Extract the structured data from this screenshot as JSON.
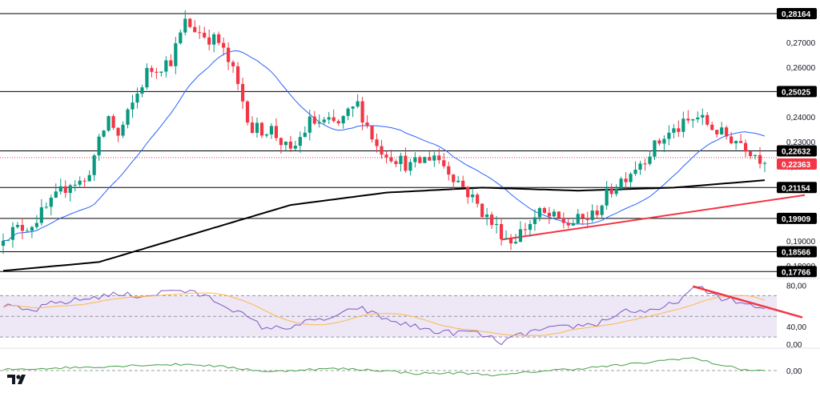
{
  "chart_data": [
    {
      "type": "candlestick",
      "pane": "price",
      "ylim": [
        0.1755,
        0.2865
      ],
      "tick_labels": [
        "0,27000",
        "0,26000",
        "0,24000",
        "0,23000",
        "0,22000",
        "0,19000",
        "0,18000"
      ],
      "tick_values": [
        0.27,
        0.26,
        0.24,
        0.23,
        0.22,
        0.19,
        0.18
      ],
      "level_labels": [
        "0,28164",
        "0,25025",
        "0,22632",
        "0,21154",
        "0,19909",
        "0,18566",
        "0,17766"
      ],
      "level_values": [
        0.28164,
        0.25025,
        0.22632,
        0.21154,
        0.19909,
        0.18566,
        0.17766
      ],
      "last_price_label": "0,22363",
      "last_price": 0.22363,
      "candle_count": 160,
      "close_path": [
        [
          0,
          0.1925
        ],
        [
          6,
          0.197
        ],
        [
          10,
          0.205
        ],
        [
          14,
          0.214
        ],
        [
          17,
          0.2135
        ],
        [
          22,
          0.24
        ],
        [
          24,
          0.232
        ],
        [
          30,
          0.258
        ],
        [
          35,
          0.263
        ],
        [
          38,
          0.278
        ],
        [
          42,
          0.273
        ],
        [
          45,
          0.27
        ],
        [
          48,
          0.258
        ],
        [
          52,
          0.235
        ],
        [
          56,
          0.235
        ],
        [
          60,
          0.225
        ],
        [
          64,
          0.238
        ],
        [
          70,
          0.237
        ],
        [
          74,
          0.245
        ],
        [
          78,
          0.228
        ],
        [
          85,
          0.22
        ],
        [
          90,
          0.225
        ],
        [
          96,
          0.212
        ],
        [
          102,
          0.197
        ],
        [
          106,
          0.19
        ],
        [
          112,
          0.201
        ],
        [
          118,
          0.197
        ],
        [
          123,
          0.2
        ],
        [
          127,
          0.211
        ],
        [
          133,
          0.222
        ],
        [
          138,
          0.232
        ],
        [
          145,
          0.24
        ],
        [
          150,
          0.233
        ],
        [
          154,
          0.23
        ],
        [
          158,
          0.2236
        ],
        [
          159,
          0.22363
        ]
      ],
      "colors": {
        "up": "#089981",
        "down": "#f23645",
        "ma_fast": "#2962ff",
        "ma_slow": "#000000",
        "trendline": "#f23645",
        "levels": "#000000"
      }
    },
    {
      "type": "line",
      "pane": "rsi",
      "ylim": [
        20,
        85
      ],
      "tick_labels": [
        "80,00",
        "40,00"
      ],
      "tick_values": [
        80,
        40
      ],
      "band": [
        30,
        70
      ],
      "series_path": [
        [
          0,
          60
        ],
        [
          6,
          55
        ],
        [
          10,
          62
        ],
        [
          16,
          66
        ],
        [
          22,
          71
        ],
        [
          30,
          70
        ],
        [
          36,
          76
        ],
        [
          42,
          70
        ],
        [
          48,
          57
        ],
        [
          54,
          40
        ],
        [
          58,
          38
        ],
        [
          62,
          43
        ],
        [
          70,
          50
        ],
        [
          74,
          59
        ],
        [
          80,
          47
        ],
        [
          86,
          40
        ],
        [
          92,
          34
        ],
        [
          98,
          35
        ],
        [
          104,
          25
        ],
        [
          110,
          35
        ],
        [
          118,
          40
        ],
        [
          124,
          43
        ],
        [
          130,
          56
        ],
        [
          136,
          54
        ],
        [
          140,
          63
        ],
        [
          145,
          78
        ],
        [
          150,
          68
        ],
        [
          155,
          62
        ],
        [
          159,
          55
        ]
      ],
      "colors": {
        "rsi": "#7e57c2",
        "signal": "#ffb74d",
        "band": "#ede7f6",
        "trendline": "#f23645"
      }
    },
    {
      "type": "line",
      "pane": "oscillator",
      "tick_labels": [
        "0,00",
        "0,00"
      ],
      "tick_values": [
        0,
        0
      ],
      "series_path": [
        [
          0,
          0.2
        ],
        [
          10,
          0.5
        ],
        [
          20,
          0.8
        ],
        [
          30,
          1.2
        ],
        [
          40,
          1.3
        ],
        [
          50,
          0.4
        ],
        [
          56,
          -0.3
        ],
        [
          62,
          0.2
        ],
        [
          70,
          0.4
        ],
        [
          78,
          0.1
        ],
        [
          86,
          -0.6
        ],
        [
          96,
          -0.5
        ],
        [
          104,
          -1.0
        ],
        [
          112,
          -0.1
        ],
        [
          120,
          0.4
        ],
        [
          126,
          0.9
        ],
        [
          134,
          1.6
        ],
        [
          140,
          2.4
        ],
        [
          144,
          2.6
        ],
        [
          148,
          1.6
        ],
        [
          154,
          0.3
        ],
        [
          159,
          -0.1
        ]
      ],
      "colors": {
        "line": "#43a047",
        "zero": "#9e9e9e"
      }
    }
  ]
}
